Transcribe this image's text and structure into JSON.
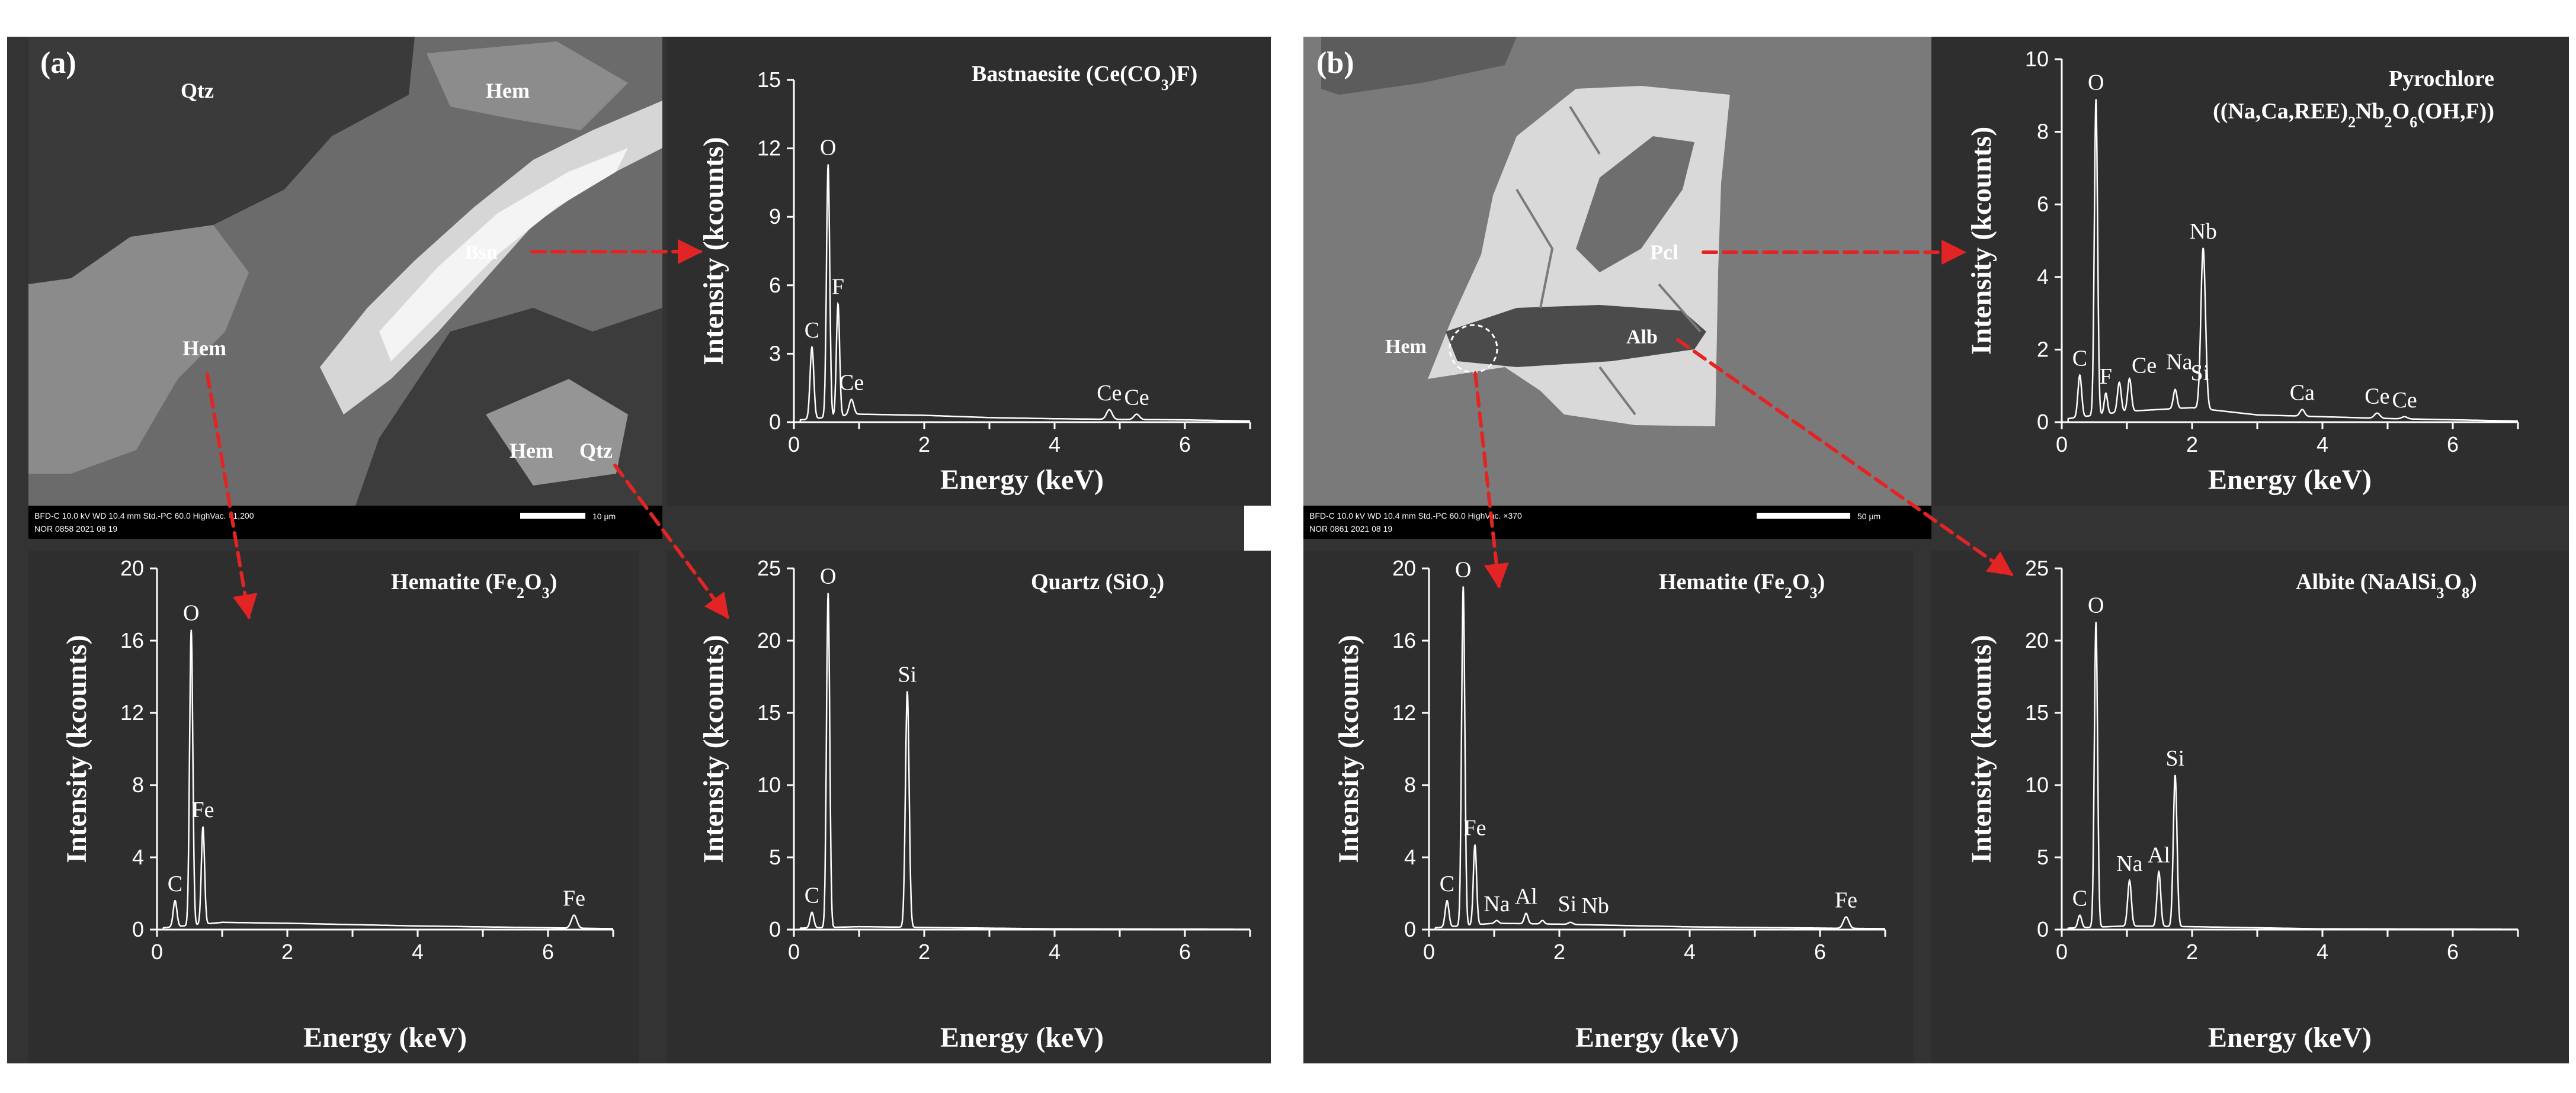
{
  "colors": {
    "panel_bg": "#333333",
    "plot_bg": "#2e2e2e",
    "foreground": "#ffffff",
    "arrow": "#e32424",
    "arrow_highlight": "#f2c1c1"
  },
  "panels": {
    "a": {
      "label": "(a)",
      "sem": {
        "labels": [
          "Qtz",
          "Hem",
          "Bsn",
          "Hem",
          "Hem",
          "Qtz"
        ],
        "databar_line1": "BFD-C   10.0 kV   WD 10.4 mm     Std.-PC 60.0     HighVac.   ×1,200",
        "databar_line2": "NOR    0858     2021 08 19",
        "scale_label": "10 μm"
      }
    },
    "b": {
      "label": "(b)",
      "sem": {
        "labels": [
          "Pcl",
          "Hem",
          "Alb"
        ],
        "databar_line1": "BFD-C   10.0 kV   WD 10.4 mm     Std.-PC 60.0     HighVac.   ×370",
        "databar_line2": "NOR    0861     2021 08 19",
        "scale_label": "50 μm"
      }
    }
  },
  "chart_data": [
    {
      "id": "bastnaesite",
      "type": "line",
      "title_text": "Bastnaesite",
      "title_formula_parts": [
        [
          "(Ce(CO",
          ""
        ],
        [
          "3",
          "sub"
        ],
        [
          ")F)",
          ""
        ]
      ],
      "xlabel": "Energy (keV)",
      "ylabel": "Intensity (kcounts)",
      "xlim": [
        0,
        7
      ],
      "ylim": [
        0,
        15
      ],
      "x_ticks": [
        0,
        2,
        4,
        6
      ],
      "y_ticks": [
        0,
        3,
        6,
        9,
        12,
        15
      ],
      "peaks": [
        {
          "label": "C",
          "x": 0.277,
          "y": 3.3,
          "w": 0.04
        },
        {
          "label": "O",
          "x": 0.525,
          "y": 11.3,
          "w": 0.035
        },
        {
          "label": "F",
          "x": 0.677,
          "y": 5.2,
          "w": 0.035
        },
        {
          "label": "Ce",
          "x": 0.883,
          "y": 1.0,
          "w": 0.05
        },
        {
          "label": "Ce",
          "x": 4.84,
          "y": 0.55,
          "w": 0.06
        },
        {
          "label": "Ce",
          "x": 5.26,
          "y": 0.35,
          "w": 0.06
        }
      ],
      "background": [
        [
          0.1,
          0.1
        ],
        [
          1.0,
          0.35
        ],
        [
          2.0,
          0.3
        ],
        [
          3.0,
          0.2
        ],
        [
          4.0,
          0.15
        ],
        [
          5.0,
          0.12
        ],
        [
          6.0,
          0.1
        ],
        [
          7.0,
          0.05
        ]
      ]
    },
    {
      "id": "hematite-a",
      "type": "line",
      "title_text": "Hematite",
      "title_formula_parts": [
        [
          "(Fe",
          ""
        ],
        [
          "2",
          "sub"
        ],
        [
          "O",
          ""
        ],
        [
          "3",
          "sub"
        ],
        [
          ")",
          ""
        ]
      ],
      "xlabel": "Energy (keV)",
      "ylabel": "Intensity (kcounts)",
      "xlim": [
        0,
        7
      ],
      "ylim": [
        0,
        20
      ],
      "x_ticks": [
        0,
        2,
        4,
        6
      ],
      "y_ticks": [
        0,
        4,
        8,
        12,
        16,
        20
      ],
      "peaks": [
        {
          "label": "C",
          "x": 0.277,
          "y": 1.6,
          "w": 0.04
        },
        {
          "label": "O",
          "x": 0.525,
          "y": 16.6,
          "w": 0.035
        },
        {
          "label": "Fe",
          "x": 0.705,
          "y": 5.7,
          "w": 0.035
        },
        {
          "label": "Fe",
          "x": 6.4,
          "y": 0.8,
          "w": 0.06
        }
      ],
      "background": [
        [
          0.1,
          0.1
        ],
        [
          1.0,
          0.4
        ],
        [
          2.0,
          0.35
        ],
        [
          4.0,
          0.2
        ],
        [
          6.0,
          0.1
        ],
        [
          7.0,
          0.05
        ]
      ]
    },
    {
      "id": "quartz",
      "type": "line",
      "title_text": "Quartz",
      "title_formula_parts": [
        [
          "(SiO",
          ""
        ],
        [
          "2",
          "sub"
        ],
        [
          ")",
          ""
        ]
      ],
      "xlabel": "Energy (keV)",
      "ylabel": "Intensity (kcounts)",
      "xlim": [
        0,
        7
      ],
      "ylim": [
        0,
        25
      ],
      "x_ticks": [
        0,
        2,
        4,
        6
      ],
      "y_ticks": [
        0,
        5,
        10,
        15,
        20,
        25
      ],
      "peaks": [
        {
          "label": "C",
          "x": 0.277,
          "y": 1.2,
          "w": 0.04
        },
        {
          "label": "O",
          "x": 0.525,
          "y": 23.3,
          "w": 0.035
        },
        {
          "label": "Si",
          "x": 1.74,
          "y": 16.5,
          "w": 0.04
        }
      ],
      "background": [
        [
          0.1,
          0.1
        ],
        [
          1.0,
          0.2
        ],
        [
          2.0,
          0.15
        ],
        [
          4.0,
          0.05
        ],
        [
          7.0,
          0.02
        ]
      ]
    },
    {
      "id": "pyrochlore",
      "type": "line",
      "title_text": "Pyrochlore",
      "title_formula_parts": [
        [
          "((Na,Ca,REE)",
          ""
        ],
        [
          "2",
          "sub"
        ],
        [
          "Nb",
          ""
        ],
        [
          "2",
          "sub"
        ],
        [
          "O",
          ""
        ],
        [
          "6",
          "sub"
        ],
        [
          "(OH,F))",
          ""
        ]
      ],
      "xlabel": "Energy (keV)",
      "ylabel": "Intensity (kcounts)",
      "xlim": [
        0,
        7
      ],
      "ylim": [
        0,
        10
      ],
      "x_ticks": [
        0,
        2,
        4,
        6
      ],
      "y_ticks": [
        0,
        2,
        4,
        6,
        8,
        10
      ],
      "peaks": [
        {
          "label": "C",
          "x": 0.277,
          "y": 1.3,
          "w": 0.04
        },
        {
          "label": "O",
          "x": 0.525,
          "y": 8.9,
          "w": 0.035
        },
        {
          "label": "F",
          "x": 0.677,
          "y": 0.8,
          "w": 0.035
        },
        {
          "label": "Ce",
          "x": 0.883,
          "y": 1.1,
          "w": 0.04
        },
        {
          "label": "Na",
          "x": 1.04,
          "y": 1.2,
          "w": 0.04
        },
        {
          "label": "Si",
          "x": 1.74,
          "y": 0.9,
          "w": 0.04
        },
        {
          "label": "Nb",
          "x": 2.17,
          "y": 4.8,
          "w": 0.05
        },
        {
          "label": "Ca",
          "x": 3.69,
          "y": 0.35,
          "w": 0.05
        },
        {
          "label": "Ce",
          "x": 4.84,
          "y": 0.25,
          "w": 0.06
        },
        {
          "label": "Ce",
          "x": 5.26,
          "y": 0.15,
          "w": 0.06
        }
      ],
      "background": [
        [
          0.1,
          0.1
        ],
        [
          1.0,
          0.3
        ],
        [
          2.0,
          0.4
        ],
        [
          3.0,
          0.2
        ],
        [
          5.0,
          0.1
        ],
        [
          7.0,
          0.03
        ]
      ]
    },
    {
      "id": "hematite-b",
      "type": "line",
      "title_text": "Hematite",
      "title_formula_parts": [
        [
          "(Fe",
          ""
        ],
        [
          "2",
          "sub"
        ],
        [
          "O",
          ""
        ],
        [
          "3",
          "sub"
        ],
        [
          ")",
          ""
        ]
      ],
      "xlabel": "Energy (keV)",
      "ylabel": "Intensity (kcounts)",
      "xlim": [
        0,
        7
      ],
      "ylim": [
        0,
        20
      ],
      "x_ticks": [
        0,
        2,
        4,
        6
      ],
      "y_ticks": [
        0,
        4,
        8,
        12,
        16,
        20
      ],
      "peaks": [
        {
          "label": "C",
          "x": 0.277,
          "y": 1.6,
          "w": 0.04
        },
        {
          "label": "O",
          "x": 0.525,
          "y": 19.0,
          "w": 0.035
        },
        {
          "label": "Fe",
          "x": 0.705,
          "y": 4.7,
          "w": 0.035
        },
        {
          "label": "Na",
          "x": 1.04,
          "y": 0.5,
          "w": 0.04
        },
        {
          "label": "Al",
          "x": 1.49,
          "y": 0.9,
          "w": 0.04
        },
        {
          "label": "Si",
          "x": 1.74,
          "y": 0.5,
          "w": 0.04
        },
        {
          "label": "Nb",
          "x": 2.17,
          "y": 0.4,
          "w": 0.05
        },
        {
          "label": "Fe",
          "x": 6.4,
          "y": 0.7,
          "w": 0.06
        }
      ],
      "background": [
        [
          0.1,
          0.1
        ],
        [
          1.0,
          0.35
        ],
        [
          2.0,
          0.3
        ],
        [
          4.0,
          0.15
        ],
        [
          7.0,
          0.05
        ]
      ]
    },
    {
      "id": "albite",
      "type": "line",
      "title_text": "Albite",
      "title_formula_parts": [
        [
          "(NaAlSi",
          ""
        ],
        [
          "3",
          "sub"
        ],
        [
          "O",
          ""
        ],
        [
          "8",
          "sub"
        ],
        [
          ")",
          ""
        ]
      ],
      "xlabel": "Energy (keV)",
      "ylabel": "Intensity (kcounts)",
      "xlim": [
        0,
        7
      ],
      "ylim": [
        0,
        25
      ],
      "x_ticks": [
        0,
        2,
        4,
        6
      ],
      "y_ticks": [
        0,
        5,
        10,
        15,
        20,
        25
      ],
      "peaks": [
        {
          "label": "C",
          "x": 0.277,
          "y": 1.0,
          "w": 0.04
        },
        {
          "label": "O",
          "x": 0.525,
          "y": 21.3,
          "w": 0.035
        },
        {
          "label": "Na",
          "x": 1.04,
          "y": 3.4,
          "w": 0.04
        },
        {
          "label": "Al",
          "x": 1.49,
          "y": 4.0,
          "w": 0.04
        },
        {
          "label": "Si",
          "x": 1.74,
          "y": 10.7,
          "w": 0.04
        }
      ],
      "background": [
        [
          0.1,
          0.1
        ],
        [
          1.0,
          0.25
        ],
        [
          2.0,
          0.2
        ],
        [
          4.0,
          0.05
        ],
        [
          7.0,
          0.02
        ]
      ]
    }
  ]
}
